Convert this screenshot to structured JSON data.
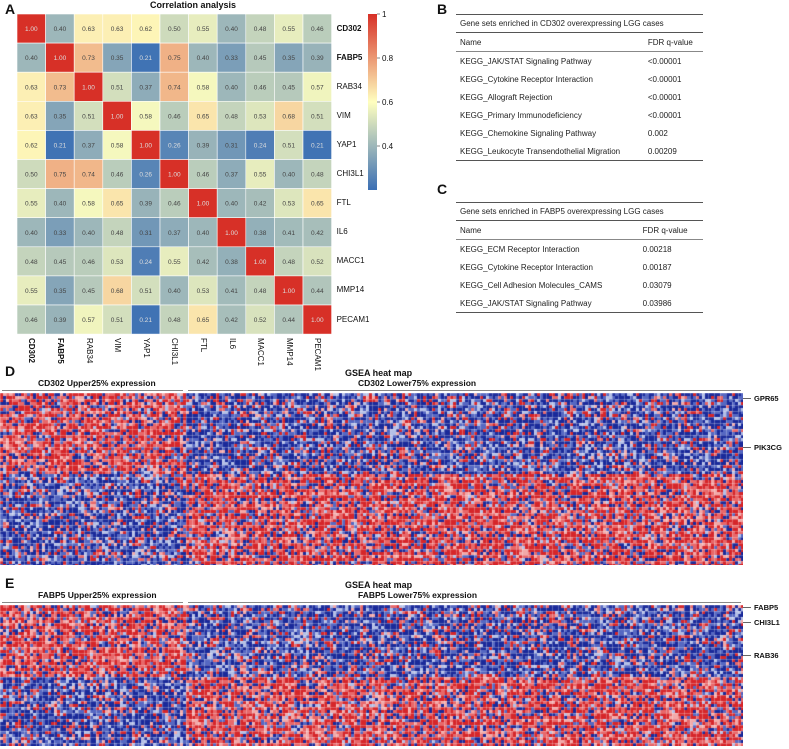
{
  "panels": {
    "a": "A",
    "b": "B",
    "c": "C",
    "d": "D",
    "e": "E"
  },
  "correlation": {
    "title": "Correlation analysis",
    "genes": [
      "CD302",
      "FABP5",
      "RAB34",
      "VIM",
      "YAP1",
      "CHI3L1",
      "FTL",
      "IL6",
      "MACC1",
      "MMP14",
      "PECAM1"
    ],
    "matrix": [
      [
        1.0,
        0.4,
        0.63,
        0.63,
        0.62,
        0.5,
        0.55,
        0.4,
        0.48,
        0.55,
        0.46
      ],
      [
        0.4,
        1.0,
        0.73,
        0.35,
        0.21,
        0.75,
        0.4,
        0.33,
        0.45,
        0.35,
        0.39
      ],
      [
        0.63,
        0.73,
        1.0,
        0.51,
        0.37,
        0.74,
        0.58,
        0.4,
        0.46,
        0.45,
        0.57
      ],
      [
        0.63,
        0.35,
        0.51,
        1.0,
        0.58,
        0.46,
        0.65,
        0.48,
        0.53,
        0.68,
        0.51
      ],
      [
        0.62,
        0.21,
        0.37,
        0.58,
        1.0,
        0.26,
        0.39,
        0.31,
        0.24,
        0.51,
        0.21
      ],
      [
        0.5,
        0.75,
        0.74,
        0.46,
        0.26,
        1.0,
        0.46,
        0.37,
        0.55,
        0.4,
        0.48
      ],
      [
        0.55,
        0.4,
        0.58,
        0.65,
        0.39,
        0.46,
        1.0,
        0.4,
        0.42,
        0.53,
        0.65
      ],
      [
        0.4,
        0.33,
        0.4,
        0.48,
        0.31,
        0.37,
        0.4,
        1.0,
        0.38,
        0.41,
        0.42
      ],
      [
        0.48,
        0.45,
        0.46,
        0.53,
        0.24,
        0.55,
        0.42,
        0.38,
        1.0,
        0.48,
        0.52
      ],
      [
        0.55,
        0.35,
        0.45,
        0.68,
        0.51,
        0.4,
        0.53,
        0.41,
        0.48,
        1.0,
        0.44
      ],
      [
        0.46,
        0.39,
        0.57,
        0.51,
        0.21,
        0.48,
        0.65,
        0.42,
        0.52,
        0.44,
        1.0
      ]
    ],
    "colorbar_ticks": [
      "1",
      "0.8",
      "0.6",
      "0.4"
    ],
    "colors": {
      "low": "#3b6fb4",
      "mid": "#ffffbf",
      "high": "#d73027"
    }
  },
  "table_b": {
    "caption": "Gene sets enriched in CD302 overexpressing LGG cases",
    "col_name": "Name",
    "col_fdr": "FDR q-value",
    "rows": [
      {
        "name": "KEGG_JAK/STAT Signaling Pathway",
        "fdr": "<0.00001"
      },
      {
        "name": "KEGG_Cytokine Receptor Interaction",
        "fdr": "<0.00001"
      },
      {
        "name": "KEGG_Allograft Rejection",
        "fdr": "<0.00001"
      },
      {
        "name": "KEGG_Primary Immunodeficiency",
        "fdr": "<0.00001"
      },
      {
        "name": "KEGG_Chemokine Signaling Pathway",
        "fdr": "0.002"
      },
      {
        "name": "KEGG_Leukocyte Transendothelial Migration",
        "fdr": "0.00209"
      }
    ]
  },
  "table_c": {
    "caption": "Gene sets enriched in FABP5 overexpressing LGG cases",
    "col_name": "Name",
    "col_fdr": "FDR q-value",
    "rows": [
      {
        "name": "KEGG_ECM Receptor Interaction",
        "fdr": "0.00218"
      },
      {
        "name": "KEGG_Cytokine Receptor Interaction",
        "fdr": "0.00187"
      },
      {
        "name": "KEGG_Cell Adhesion Molecules_CAMS",
        "fdr": "0.03079"
      },
      {
        "name": "KEGG_JAK/STAT Signaling Pathway",
        "fdr": "0.03986"
      }
    ]
  },
  "heatmap_d": {
    "title": "GSEA heat map",
    "group_high": "CD302 Upper25% expression",
    "group_low": "CD302 Lower75% expression",
    "genes": [
      "GPR65",
      "PIK3CG"
    ]
  },
  "heatmap_e": {
    "title": "GSEA heat map",
    "group_high": "FABP5 Upper25% expression",
    "group_low": "FABP5 Lower75% expression",
    "genes": [
      "FABP5",
      "CHI3L1",
      "RAB36"
    ]
  }
}
